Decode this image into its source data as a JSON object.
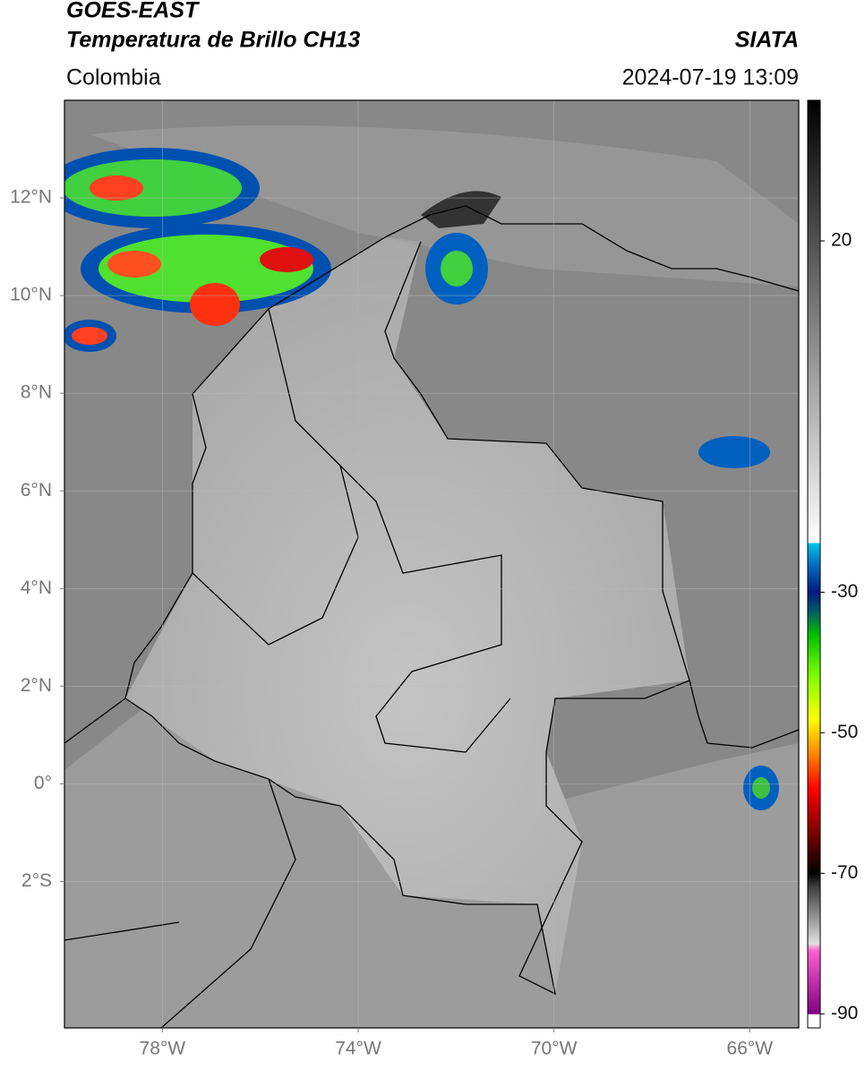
{
  "header": {
    "title_line1": "GOES-EAST",
    "title_line2": "Temperatura de Brillo CH13",
    "source": "SIATA",
    "region": "Colombia",
    "datetime": "2024-07-19 13:09"
  },
  "map": {
    "lon_range": [
      -80,
      -65
    ],
    "lat_range": [
      -5,
      14
    ],
    "lon_ticks": [
      {
        "value": -78,
        "label": "78°W"
      },
      {
        "value": -74,
        "label": "74°W"
      },
      {
        "value": -70,
        "label": "70°W"
      },
      {
        "value": -66,
        "label": "66°W"
      }
    ],
    "lat_ticks": [
      {
        "value": 12,
        "label": "12°N"
      },
      {
        "value": 10,
        "label": "10°N"
      },
      {
        "value": 8,
        "label": "8°N"
      },
      {
        "value": 6,
        "label": "6°N"
      },
      {
        "value": 4,
        "label": "4°N"
      },
      {
        "value": 2,
        "label": "2°N"
      },
      {
        "value": 0,
        "label": "0°"
      },
      {
        "value": -2,
        "label": "2°S"
      }
    ],
    "grid": true
  },
  "colorbar": {
    "range": [
      -92,
      40
    ],
    "ticks": [
      20,
      -30,
      -50,
      -70,
      -90
    ],
    "colormap": [
      {
        "value": 40,
        "color": "#000000"
      },
      {
        "value": -23,
        "color": "#ffffff"
      },
      {
        "value": -23,
        "color": "#00c8e8"
      },
      {
        "value": -26,
        "color": "#0070c0"
      },
      {
        "value": -30,
        "color": "#001a80"
      },
      {
        "value": -33,
        "color": "#006060"
      },
      {
        "value": -36,
        "color": "#00c000"
      },
      {
        "value": -42,
        "color": "#80ff00"
      },
      {
        "value": -48,
        "color": "#ffff00"
      },
      {
        "value": -52,
        "color": "#ffa000"
      },
      {
        "value": -58,
        "color": "#ff0000"
      },
      {
        "value": -64,
        "color": "#800000"
      },
      {
        "value": -70,
        "color": "#000000"
      },
      {
        "value": -72,
        "color": "#404040"
      },
      {
        "value": -80,
        "color": "#e0e0e0"
      },
      {
        "value": -81,
        "color": "#ff60d0"
      },
      {
        "value": -90,
        "color": "#800080"
      },
      {
        "value": -90.1,
        "color": "#ffffff"
      },
      {
        "value": -92,
        "color": "#ffffff"
      }
    ]
  }
}
